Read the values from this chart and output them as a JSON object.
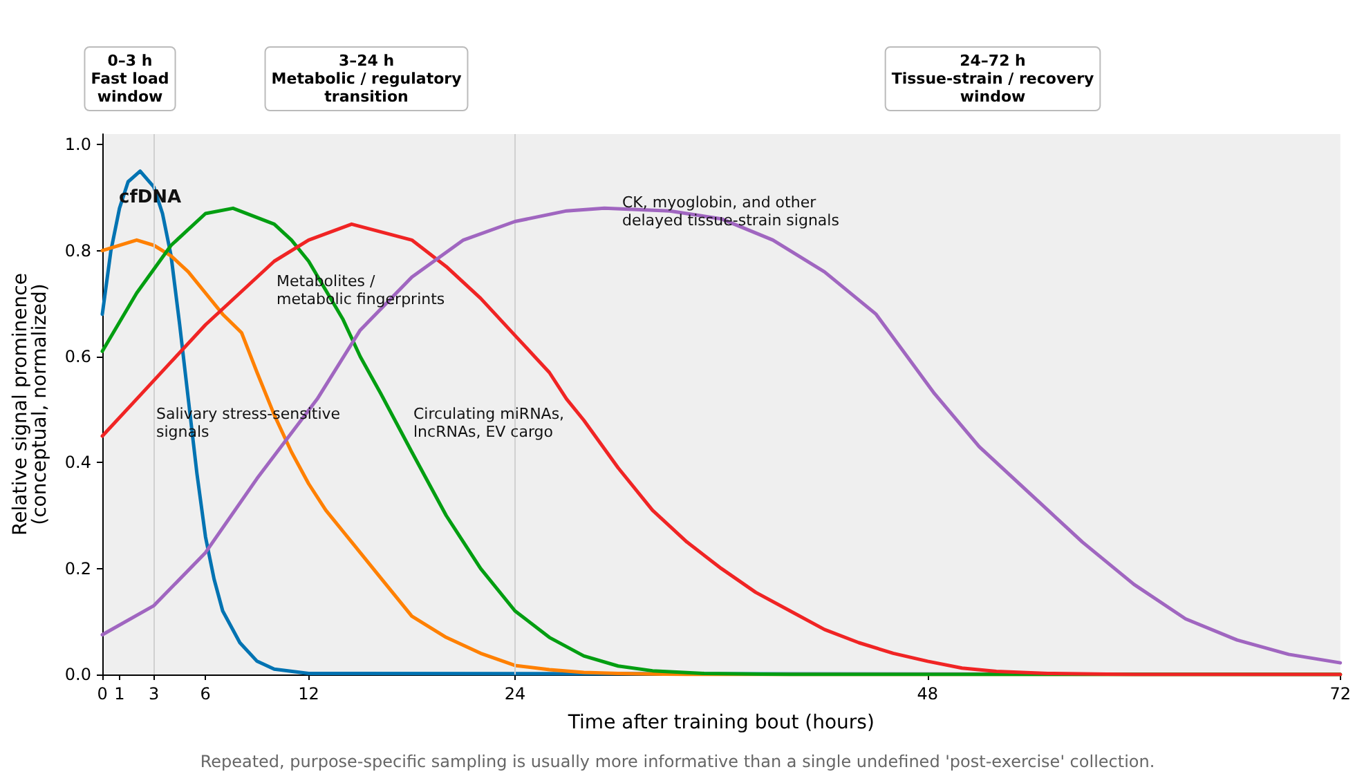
{
  "chart_data": {
    "type": "line",
    "xlabel": "Time after training bout (hours)",
    "ylabel": "Relative signal prominence\n(conceptual, normalized)",
    "xlim": [
      0,
      72
    ],
    "xticks": [
      0,
      1,
      3,
      6,
      12,
      24,
      48,
      72
    ],
    "ylim": [
      0,
      1.02
    ],
    "yticks": [
      {
        "value": 0,
        "label": "0.0"
      },
      0.2,
      0.4,
      0.6,
      0.8,
      {
        "value": 1,
        "label": "1.0"
      }
    ],
    "grid": false,
    "legend": false,
    "marker": "none",
    "line_style": "solid",
    "series": [
      {
        "color": "#0173b2",
        "x": [
          0,
          0.5,
          1,
          1.5,
          2.2,
          3,
          3.5,
          4,
          4.5,
          5,
          5.5,
          6,
          6.5,
          7,
          8,
          9,
          10,
          12,
          72
        ],
        "values": [
          0.68,
          0.8,
          0.88,
          0.93,
          0.95,
          0.92,
          0.87,
          0.79,
          0.66,
          0.52,
          0.38,
          0.26,
          0.18,
          0.12,
          0.06,
          0.025,
          0.01,
          0.002,
          0
        ]
      },
      {
        "color": "#ff8000",
        "x": [
          0,
          2,
          3,
          4,
          5,
          6,
          7,
          8.1,
          9,
          10,
          11,
          12,
          13,
          14,
          16,
          18,
          20,
          22,
          24,
          26,
          28,
          30,
          34,
          72
        ],
        "values": [
          0.8,
          0.82,
          0.81,
          0.79,
          0.76,
          0.72,
          0.68,
          0.645,
          0.57,
          0.49,
          0.42,
          0.36,
          0.31,
          0.27,
          0.19,
          0.11,
          0.07,
          0.04,
          0.017,
          0.009,
          0.004,
          0.002,
          0,
          0
        ]
      },
      {
        "color": "#029e11",
        "x": [
          0,
          2,
          4,
          6,
          7.6,
          10,
          11,
          12,
          14,
          15,
          16.2,
          18,
          20,
          22,
          24,
          26,
          28,
          30,
          32,
          35,
          40,
          72
        ],
        "values": [
          0.61,
          0.72,
          0.81,
          0.87,
          0.88,
          0.85,
          0.82,
          0.78,
          0.67,
          0.6,
          0.53,
          0.42,
          0.3,
          0.2,
          0.12,
          0.07,
          0.035,
          0.016,
          0.007,
          0.002,
          0,
          0
        ]
      },
      {
        "color": "#f02424",
        "x": [
          0,
          2,
          4,
          6,
          8,
          10,
          12,
          14.5,
          18,
          20,
          22,
          24,
          26,
          27,
          28,
          30,
          32,
          34,
          36,
          38,
          40,
          42,
          44,
          46,
          48,
          50,
          52,
          55,
          60,
          72
        ],
        "values": [
          0.45,
          0.52,
          0.59,
          0.66,
          0.72,
          0.78,
          0.82,
          0.85,
          0.82,
          0.77,
          0.71,
          0.64,
          0.57,
          0.52,
          0.48,
          0.39,
          0.31,
          0.25,
          0.2,
          0.155,
          0.12,
          0.085,
          0.06,
          0.04,
          0.025,
          0.012,
          0.006,
          0.002,
          0,
          0
        ]
      },
      {
        "color": "#a066c0",
        "x": [
          0,
          3,
          6,
          9,
          12.5,
          15,
          18,
          21,
          24,
          27,
          29.2,
          33,
          36,
          39,
          42,
          45,
          48.4,
          51,
          54,
          57,
          60,
          63,
          66,
          69,
          72
        ],
        "values": [
          0.075,
          0.13,
          0.23,
          0.37,
          0.52,
          0.65,
          0.75,
          0.82,
          0.855,
          0.875,
          0.88,
          0.875,
          0.86,
          0.82,
          0.76,
          0.68,
          0.53,
          0.43,
          0.34,
          0.25,
          0.17,
          0.105,
          0.065,
          0.038,
          0.022
        ]
      }
    ],
    "ref_lines": [
      {
        "axis": "x",
        "value": 3,
        "label": null,
        "color": "#d0d0d0"
      },
      {
        "axis": "x",
        "value": 24,
        "label": null,
        "color": "#d0d0d0"
      }
    ],
    "annotations": [
      "cfDNA",
      "Salivary stress-sensitive\nsignals",
      "Metabolites /\nmetabolic fingerprints",
      "Circulating miRNAs,\nlncRNAs, EV cargo",
      "CK, myoglobin, and other\ndelayed tissue-strain signals",
      "0–3 h\nFast load\nwindow",
      "3–24 h\nMetabolic / regulatory\ntransition",
      "24–72 h\nTissue-strain / recovery\nwindow",
      "Repeated, purpose-specific sampling is usually more informative than a single undefined 'post-exercise' collection."
    ]
  }
}
